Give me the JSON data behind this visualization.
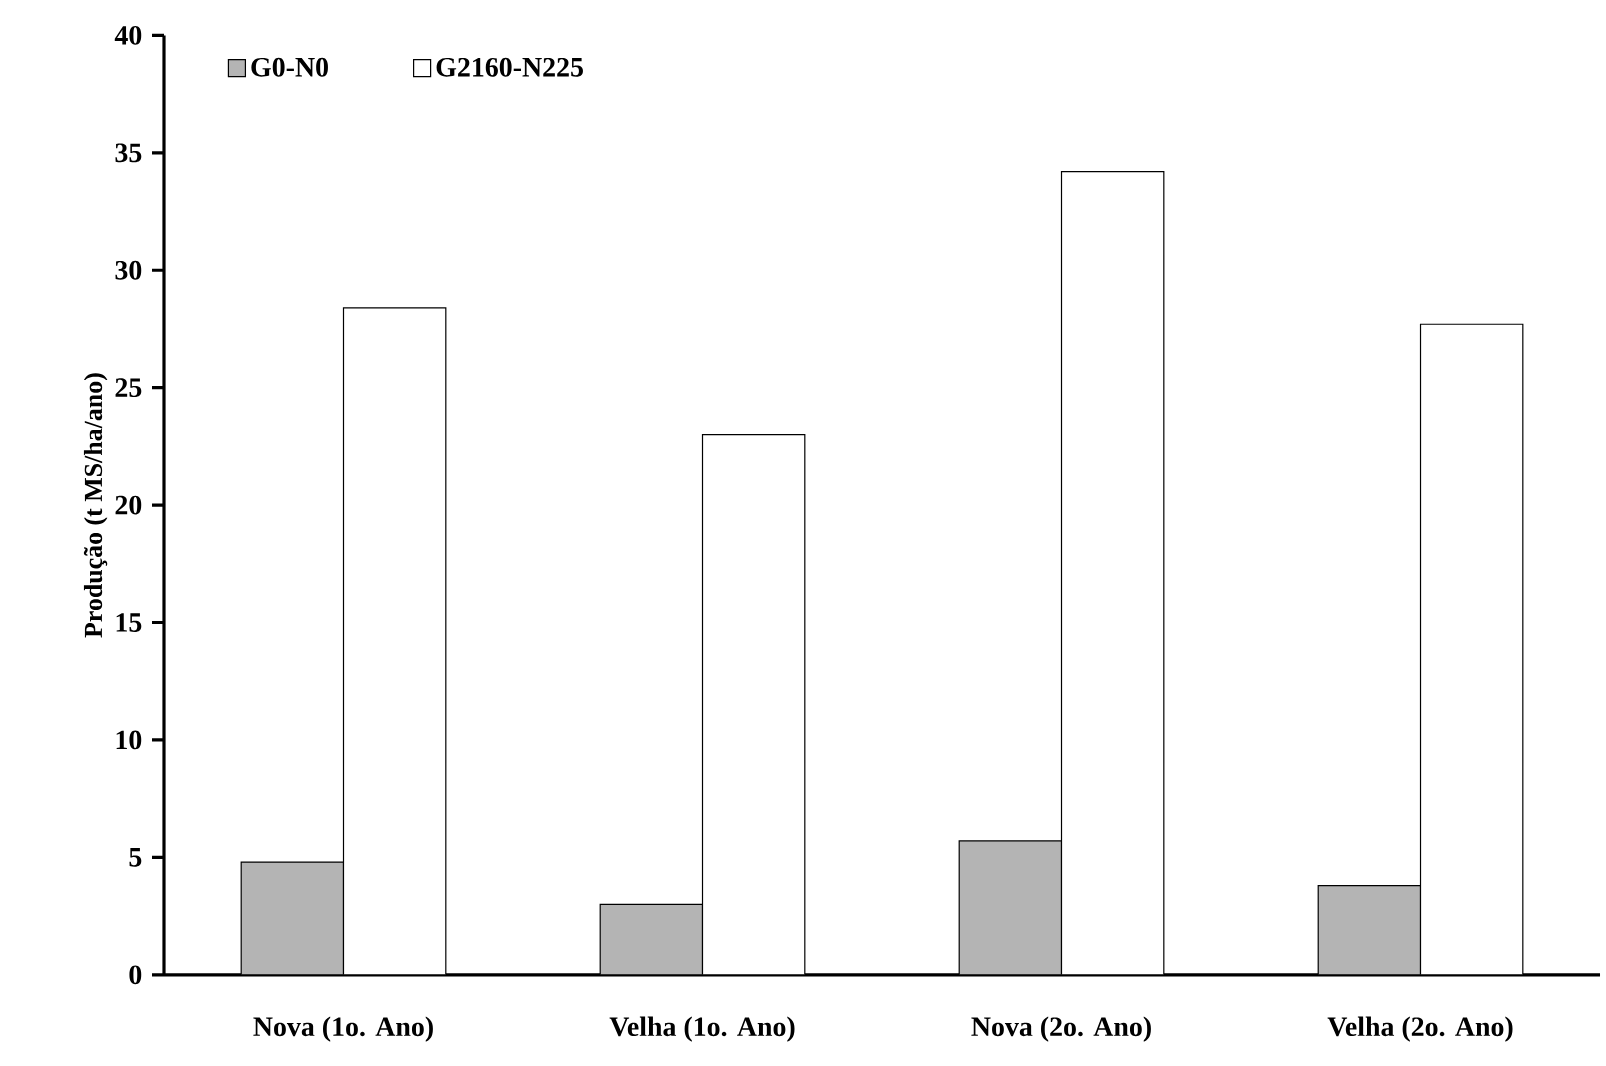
{
  "chart_data": {
    "type": "bar",
    "ylabel": "Produção (t MS/ha/ano)",
    "categories": [
      "Nova (1o. Ano)",
      "Velha (1o. Ano)",
      "Nova (2o. Ano)",
      "Velha (2o. Ano)"
    ],
    "series": [
      {
        "name": "G0-N0",
        "color": "#b4b4b4",
        "values": [
          4.8,
          3.0,
          5.7,
          3.8
        ]
      },
      {
        "name": "G2160-N225",
        "color": "#ffffff",
        "values": [
          28.4,
          23.0,
          34.2,
          27.7
        ]
      }
    ],
    "ylim": [
      0,
      40
    ],
    "yticks": [
      0,
      5,
      10,
      15,
      20,
      25,
      30,
      35,
      40
    ],
    "grid": false,
    "legend": "top left"
  }
}
